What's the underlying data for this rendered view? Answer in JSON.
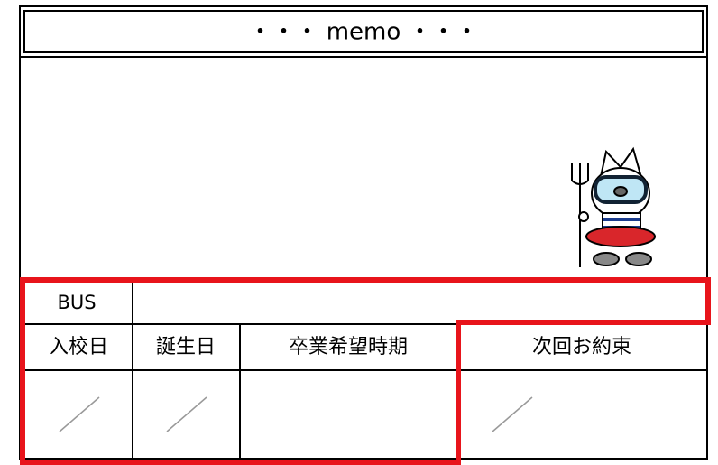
{
  "header": {
    "title": "・・・ memo ・・・"
  },
  "table": {
    "bus_label": "BUS",
    "headers": [
      "入校日",
      "誕生日",
      "卒業希望時期",
      "次回お約束"
    ]
  }
}
